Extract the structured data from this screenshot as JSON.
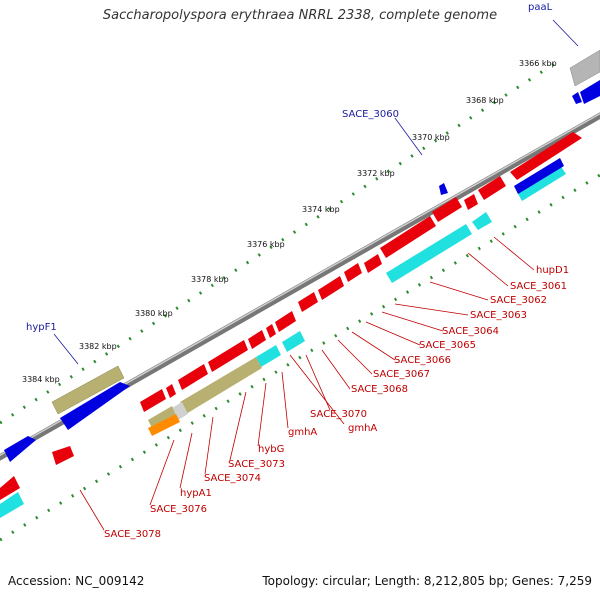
{
  "title": "Saccharopolyspora erythraea NRRL 2338, complete genome",
  "footer": {
    "accession": "Accession: NC_009142",
    "topology": "Topology: circular; Length: 8,212,805 bp; Genes: 7,259"
  },
  "colors": {
    "cds": "#e8000b",
    "blue_gene": "#0000e0",
    "cyan_track": "#20e0e0",
    "olive_track": "#b8b070",
    "orange_track": "#ff8c00",
    "backbone": "#888888",
    "tick": "#2e8b2e",
    "red_label": "#c00000",
    "blue_label": "#1a1aa0"
  },
  "kbp_ticks": [
    "3366 kbp",
    "3368 kbp",
    "3370 kbp",
    "3372 kbp",
    "3374 kbp",
    "3376 kbp",
    "3378 kbp",
    "3380 kbp",
    "3382 kbp",
    "3384 kbp"
  ],
  "blue_labels": [
    "paaL",
    "SACE_3060",
    "hypF1"
  ],
  "red_labels": [
    "hupD1",
    "SACE_3061",
    "SACE_3062",
    "SACE_3063",
    "SACE_3064",
    "SACE_3065",
    "SACE_3066",
    "SACE_3067",
    "SACE_3068",
    "SACE_3070",
    "gmhA",
    "gmhA",
    "hybG",
    "SACE_3073",
    "SACE_3074",
    "hypA1",
    "SACE_3076",
    "SACE_3078"
  ]
}
